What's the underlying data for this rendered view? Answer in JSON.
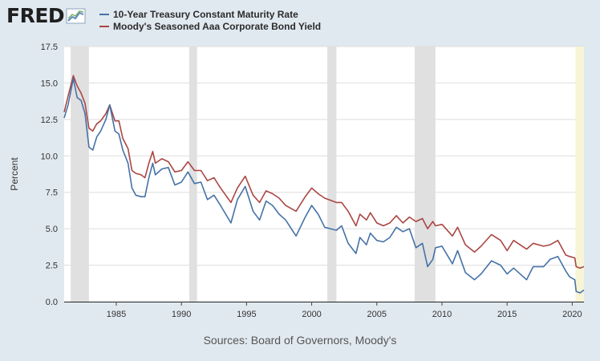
{
  "header": {
    "logo_text": "FRED",
    "logo_icon": "fred-chart-icon"
  },
  "colors": {
    "treasury": "#4572a7",
    "aaa": "#aa4643",
    "recession": "#e0e0e0",
    "plot_bg": "#ffffff",
    "grid": "#dddddd",
    "highlight": "#f7f5d6"
  },
  "source": "Sources: Board of Governors, Moody's",
  "chart_data": {
    "type": "line",
    "title": "",
    "xlabel": "",
    "ylabel": "Percent",
    "xlim": [
      1981.0,
      2020.9
    ],
    "ylim": [
      0,
      17.5
    ],
    "yticks": [
      0.0,
      2.5,
      5.0,
      7.5,
      10.0,
      12.5,
      15.0,
      17.5
    ],
    "ytick_labels": [
      "0.0",
      "2.5",
      "5.0",
      "7.5",
      "10.0",
      "12.5",
      "15.0",
      "17.5"
    ],
    "xticks": [
      1985,
      1990,
      1995,
      2000,
      2005,
      2010,
      2015,
      2020
    ],
    "xtick_labels": [
      "1985",
      "1990",
      "1995",
      "2000",
      "2005",
      "2010",
      "2015",
      "2020"
    ],
    "grid": true,
    "legend_position": "top",
    "recessions": [
      [
        1981.5,
        1982.9
      ],
      [
        1990.6,
        1991.2
      ],
      [
        2001.2,
        2001.9
      ],
      [
        2007.9,
        2009.5
      ]
    ],
    "highlight_band": [
      2020.25,
      2020.9
    ],
    "series": [
      {
        "name": "10-Year Treasury Constant Maturity Rate",
        "points": [
          [
            1981.0,
            12.6
          ],
          [
            1981.3,
            13.5
          ],
          [
            1981.7,
            15.3
          ],
          [
            1982.0,
            14.0
          ],
          [
            1982.3,
            13.8
          ],
          [
            1982.6,
            12.9
          ],
          [
            1982.9,
            10.6
          ],
          [
            1983.2,
            10.4
          ],
          [
            1983.5,
            11.3
          ],
          [
            1983.8,
            11.7
          ],
          [
            1984.2,
            12.5
          ],
          [
            1984.5,
            13.5
          ],
          [
            1984.9,
            11.7
          ],
          [
            1985.2,
            11.5
          ],
          [
            1985.5,
            10.4
          ],
          [
            1985.9,
            9.5
          ],
          [
            1986.2,
            7.8
          ],
          [
            1986.5,
            7.3
          ],
          [
            1986.9,
            7.2
          ],
          [
            1987.2,
            7.2
          ],
          [
            1987.5,
            8.5
          ],
          [
            1987.8,
            9.5
          ],
          [
            1988.0,
            8.7
          ],
          [
            1988.5,
            9.1
          ],
          [
            1989.0,
            9.2
          ],
          [
            1989.5,
            8.0
          ],
          [
            1990.0,
            8.2
          ],
          [
            1990.5,
            8.9
          ],
          [
            1991.0,
            8.1
          ],
          [
            1991.5,
            8.2
          ],
          [
            1992.0,
            7.0
          ],
          [
            1992.5,
            7.3
          ],
          [
            1993.0,
            6.6
          ],
          [
            1993.8,
            5.4
          ],
          [
            1994.3,
            7.0
          ],
          [
            1994.9,
            7.9
          ],
          [
            1995.5,
            6.2
          ],
          [
            1996.0,
            5.6
          ],
          [
            1996.5,
            6.9
          ],
          [
            1997.0,
            6.6
          ],
          [
            1997.5,
            6.0
          ],
          [
            1998.0,
            5.6
          ],
          [
            1998.8,
            4.5
          ],
          [
            1999.5,
            5.8
          ],
          [
            2000.0,
            6.6
          ],
          [
            2000.5,
            6.0
          ],
          [
            2001.0,
            5.1
          ],
          [
            2001.9,
            4.9
          ],
          [
            2002.3,
            5.2
          ],
          [
            2002.8,
            4.0
          ],
          [
            2003.4,
            3.3
          ],
          [
            2003.7,
            4.4
          ],
          [
            2004.2,
            3.9
          ],
          [
            2004.5,
            4.7
          ],
          [
            2005.0,
            4.2
          ],
          [
            2005.5,
            4.1
          ],
          [
            2006.0,
            4.4
          ],
          [
            2006.5,
            5.1
          ],
          [
            2007.0,
            4.8
          ],
          [
            2007.5,
            5.0
          ],
          [
            2008.0,
            3.7
          ],
          [
            2008.5,
            4.0
          ],
          [
            2008.9,
            2.4
          ],
          [
            2009.3,
            2.9
          ],
          [
            2009.5,
            3.7
          ],
          [
            2010.0,
            3.8
          ],
          [
            2010.8,
            2.6
          ],
          [
            2011.2,
            3.5
          ],
          [
            2011.8,
            2.0
          ],
          [
            2012.5,
            1.5
          ],
          [
            2013.0,
            1.9
          ],
          [
            2013.8,
            2.8
          ],
          [
            2014.5,
            2.5
          ],
          [
            2015.0,
            1.9
          ],
          [
            2015.5,
            2.3
          ],
          [
            2016.5,
            1.5
          ],
          [
            2017.0,
            2.4
          ],
          [
            2017.8,
            2.4
          ],
          [
            2018.3,
            2.9
          ],
          [
            2018.9,
            3.1
          ],
          [
            2019.5,
            2.1
          ],
          [
            2019.8,
            1.7
          ],
          [
            2020.2,
            1.5
          ],
          [
            2020.3,
            0.7
          ],
          [
            2020.6,
            0.6
          ],
          [
            2020.9,
            0.8
          ]
        ]
      },
      {
        "name": "Moody's Seasoned Aaa Corporate Bond Yield",
        "points": [
          [
            1981.0,
            13.0
          ],
          [
            1981.3,
            14.1
          ],
          [
            1981.7,
            15.5
          ],
          [
            1982.0,
            14.8
          ],
          [
            1982.3,
            14.3
          ],
          [
            1982.6,
            13.6
          ],
          [
            1982.9,
            11.9
          ],
          [
            1983.2,
            11.7
          ],
          [
            1983.5,
            12.2
          ],
          [
            1983.8,
            12.4
          ],
          [
            1984.2,
            12.9
          ],
          [
            1984.5,
            13.5
          ],
          [
            1984.9,
            12.4
          ],
          [
            1985.2,
            12.4
          ],
          [
            1985.5,
            11.2
          ],
          [
            1985.9,
            10.5
          ],
          [
            1986.2,
            9.0
          ],
          [
            1986.5,
            8.8
          ],
          [
            1986.9,
            8.7
          ],
          [
            1987.2,
            8.5
          ],
          [
            1987.5,
            9.5
          ],
          [
            1987.8,
            10.3
          ],
          [
            1988.0,
            9.5
          ],
          [
            1988.5,
            9.8
          ],
          [
            1989.0,
            9.6
          ],
          [
            1989.5,
            8.9
          ],
          [
            1990.0,
            9.0
          ],
          [
            1990.5,
            9.6
          ],
          [
            1991.0,
            9.0
          ],
          [
            1991.5,
            9.0
          ],
          [
            1992.0,
            8.3
          ],
          [
            1992.5,
            8.5
          ],
          [
            1993.0,
            7.8
          ],
          [
            1993.8,
            6.8
          ],
          [
            1994.3,
            7.8
          ],
          [
            1994.9,
            8.6
          ],
          [
            1995.5,
            7.3
          ],
          [
            1996.0,
            6.8
          ],
          [
            1996.5,
            7.6
          ],
          [
            1997.0,
            7.4
          ],
          [
            1997.5,
            7.1
          ],
          [
            1998.0,
            6.6
          ],
          [
            1998.8,
            6.2
          ],
          [
            1999.5,
            7.2
          ],
          [
            2000.0,
            7.8
          ],
          [
            2000.5,
            7.4
          ],
          [
            2001.0,
            7.1
          ],
          [
            2001.9,
            6.8
          ],
          [
            2002.3,
            6.8
          ],
          [
            2002.8,
            6.2
          ],
          [
            2003.4,
            5.2
          ],
          [
            2003.7,
            6.0
          ],
          [
            2004.2,
            5.6
          ],
          [
            2004.5,
            6.1
          ],
          [
            2005.0,
            5.4
          ],
          [
            2005.5,
            5.2
          ],
          [
            2006.0,
            5.4
          ],
          [
            2006.5,
            5.9
          ],
          [
            2007.0,
            5.4
          ],
          [
            2007.5,
            5.8
          ],
          [
            2008.0,
            5.5
          ],
          [
            2008.5,
            5.7
          ],
          [
            2008.9,
            5.0
          ],
          [
            2009.3,
            5.5
          ],
          [
            2009.5,
            5.2
          ],
          [
            2010.0,
            5.3
          ],
          [
            2010.8,
            4.5
          ],
          [
            2011.2,
            5.1
          ],
          [
            2011.8,
            3.9
          ],
          [
            2012.5,
            3.4
          ],
          [
            2013.0,
            3.8
          ],
          [
            2013.8,
            4.6
          ],
          [
            2014.5,
            4.2
          ],
          [
            2015.0,
            3.5
          ],
          [
            2015.5,
            4.2
          ],
          [
            2016.5,
            3.6
          ],
          [
            2017.0,
            4.0
          ],
          [
            2017.8,
            3.8
          ],
          [
            2018.3,
            3.9
          ],
          [
            2018.9,
            4.2
          ],
          [
            2019.5,
            3.2
          ],
          [
            2019.8,
            3.1
          ],
          [
            2020.2,
            3.0
          ],
          [
            2020.3,
            2.4
          ],
          [
            2020.6,
            2.3
          ],
          [
            2020.9,
            2.4
          ]
        ]
      }
    ]
  }
}
